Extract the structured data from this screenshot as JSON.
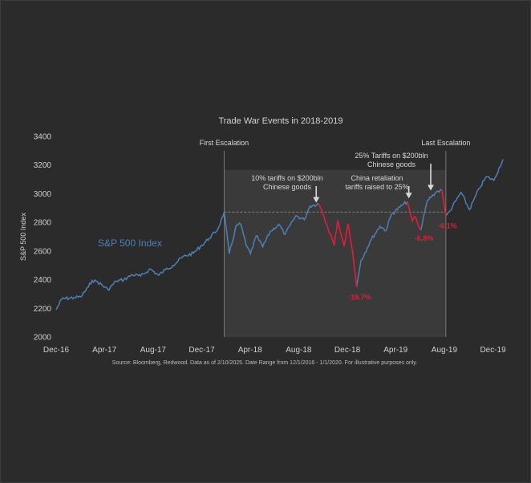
{
  "chart_data": {
    "type": "line",
    "title": "Trade War Events in 2018-2019",
    "ylabel": "S&P 500 Index",
    "series_label": "S&P 500 Index",
    "ylim": [
      2000,
      3400
    ],
    "y_ticks": [
      2000,
      2200,
      2400,
      2600,
      2800,
      3000,
      3200,
      3400
    ],
    "x_ticks": [
      {
        "label": "Dec-16",
        "date": "2016-12-01"
      },
      {
        "label": "Apr-17",
        "date": "2017-04-01"
      },
      {
        "label": "Aug-17",
        "date": "2017-08-01"
      },
      {
        "label": "Dec-17",
        "date": "2017-12-01"
      },
      {
        "label": "Apr-18",
        "date": "2018-04-01"
      },
      {
        "label": "Aug-18",
        "date": "2018-08-01"
      },
      {
        "label": "Dec-18",
        "date": "2018-12-01"
      },
      {
        "label": "Apr-19",
        "date": "2019-04-01"
      },
      {
        "label": "Aug-19",
        "date": "2019-08-01"
      },
      {
        "label": "Dec-19",
        "date": "2019-12-01"
      }
    ],
    "xlim": [
      "2016-12-01",
      "2020-01-01"
    ],
    "points": [
      [
        "2016-12-01",
        2190
      ],
      [
        "2016-12-15",
        2265
      ],
      [
        "2017-01-15",
        2275
      ],
      [
        "2017-02-01",
        2280
      ],
      [
        "2017-02-20",
        2350
      ],
      [
        "2017-03-01",
        2395
      ],
      [
        "2017-03-15",
        2385
      ],
      [
        "2017-04-10",
        2330
      ],
      [
        "2017-05-01",
        2390
      ],
      [
        "2017-05-20",
        2400
      ],
      [
        "2017-06-10",
        2435
      ],
      [
        "2017-07-01",
        2425
      ],
      [
        "2017-07-25",
        2475
      ],
      [
        "2017-08-15",
        2430
      ],
      [
        "2017-09-01",
        2470
      ],
      [
        "2017-09-20",
        2500
      ],
      [
        "2017-10-15",
        2560
      ],
      [
        "2017-11-10",
        2585
      ],
      [
        "2017-12-01",
        2640
      ],
      [
        "2017-12-20",
        2690
      ],
      [
        "2018-01-10",
        2750
      ],
      [
        "2018-01-26",
        2872
      ],
      [
        "2018-02-08",
        2581
      ],
      [
        "2018-02-26",
        2780
      ],
      [
        "2018-03-09",
        2786
      ],
      [
        "2018-03-22",
        2643
      ],
      [
        "2018-04-02",
        2582
      ],
      [
        "2018-04-17",
        2706
      ],
      [
        "2018-05-03",
        2630
      ],
      [
        "2018-05-21",
        2733
      ],
      [
        "2018-06-12",
        2786
      ],
      [
        "2018-06-28",
        2716
      ],
      [
        "2018-07-25",
        2846
      ],
      [
        "2018-08-15",
        2818
      ],
      [
        "2018-08-29",
        2914
      ],
      [
        "2018-09-20",
        2930
      ]
    ],
    "red_segments": [
      [
        [
          "2018-09-20",
          2930
        ],
        [
          "2018-10-10",
          2785
        ],
        [
          "2018-10-29",
          2641
        ],
        [
          "2018-11-07",
          2813
        ],
        [
          "2018-11-23",
          2632
        ],
        [
          "2018-12-03",
          2790
        ],
        [
          "2018-12-14",
          2600
        ],
        [
          "2018-12-24",
          2351
        ]
      ],
      [
        [
          "2019-04-30",
          2945
        ],
        [
          "2019-05-13",
          2811
        ],
        [
          "2019-05-20",
          2840
        ],
        [
          "2019-06-03",
          2744
        ]
      ],
      [
        [
          "2019-07-26",
          3025
        ],
        [
          "2019-08-05",
          2844
        ]
      ]
    ],
    "blue_after": [
      [
        [
          "2018-12-24",
          2351
        ],
        [
          "2019-01-04",
          2532
        ],
        [
          "2019-01-30",
          2681
        ],
        [
          "2019-02-21",
          2774
        ],
        [
          "2019-03-08",
          2743
        ],
        [
          "2019-03-21",
          2854
        ],
        [
          "2019-04-12",
          2907
        ],
        [
          "2019-04-30",
          2945
        ]
      ],
      [
        [
          "2019-06-03",
          2744
        ],
        [
          "2019-06-20",
          2954
        ],
        [
          "2019-07-12",
          3013
        ],
        [
          "2019-07-26",
          3025
        ]
      ],
      [
        [
          "2019-08-05",
          2844
        ],
        [
          "2019-08-15",
          2880
        ],
        [
          "2019-09-12",
          3009
        ],
        [
          "2019-10-03",
          2888
        ],
        [
          "2019-10-28",
          3039
        ],
        [
          "2019-11-15",
          3120
        ],
        [
          "2019-12-03",
          3093
        ],
        [
          "2019-12-26",
          3240
        ]
      ]
    ],
    "shaded_range": [
      "2018-01-26",
      "2019-08-05"
    ],
    "reference_level": 2872,
    "events": [
      {
        "label": "First Escalation",
        "date": "2018-01-26",
        "type": "line"
      },
      {
        "label": "Last Escalation",
        "date": "2019-08-05",
        "type": "line"
      },
      {
        "label_lines": [
          "10% tariffs on $200bln",
          "Chinese goods"
        ],
        "date": "2018-09-18",
        "value": 2915,
        "type": "arrow"
      },
      {
        "label_lines": [
          "China retaliation",
          "tariffs raised to 25%"
        ],
        "date": "2019-05-10",
        "value": 2945,
        "type": "arrow"
      },
      {
        "label_lines": [
          "25% Tariffs on $200bln",
          "Chinese goods"
        ],
        "date": "2019-06-28",
        "value": 3000,
        "type": "arrow"
      }
    ],
    "drops": [
      {
        "label": "-19.7%",
        "date": "2018-12-24",
        "value": 2351
      },
      {
        "label": "-6.8%",
        "date": "2019-06-03",
        "value": 2744
      },
      {
        "label": "-6.1%",
        "date": "2019-08-07",
        "value": 2844
      }
    ],
    "source": "Source: Bloomberg, Redwood. Data as of 2/10/2025. Date Range from 12/1/2016 - 1/1/2020. For illustrative purposes only."
  },
  "colors": {
    "line": "#4f7fb4",
    "drawdown": "#e11d3c",
    "shade": "#3a3a3a"
  }
}
